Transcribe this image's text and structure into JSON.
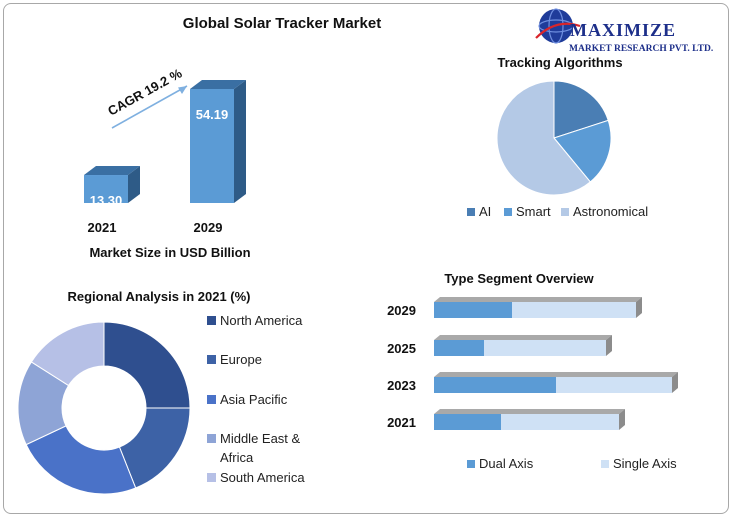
{
  "logo": {
    "name": "MAXIMIZE",
    "tagline": "MARKET RESEARCH PVT. LTD."
  },
  "chart_data": [
    {
      "id": "market",
      "type": "bar",
      "title": "Global Solar Tracker Market",
      "categories": [
        "2021",
        "2029"
      ],
      "values": [
        13.3,
        54.19
      ],
      "value_labels": [
        "13.30",
        "54.19"
      ],
      "xlabel": "Market Size in USD Billion",
      "annotation": "CAGR 19.2 %",
      "color": "#5b9bd5"
    },
    {
      "id": "algorithms",
      "type": "pie",
      "title": "Tracking Algorithms",
      "labels": [
        "AI",
        "Smart",
        "Astronomical"
      ],
      "values": [
        20,
        19,
        61
      ],
      "colors": [
        "#4a7eb4",
        "#5b9bd5",
        "#b4c9e6"
      ]
    },
    {
      "id": "regional",
      "type": "pie",
      "donut": true,
      "title": "Regional Analysis in 2021 (%)",
      "labels": [
        "North America",
        "Europe",
        "Asia Pacific",
        "Middle East & Africa",
        "South America"
      ],
      "legend_lines": [
        [
          "North America"
        ],
        [
          "Europe"
        ],
        [
          "Asia Pacific"
        ],
        [
          "Middle East &",
          "Africa"
        ],
        [
          "South America"
        ]
      ],
      "values": [
        25,
        19,
        24,
        16,
        16
      ],
      "colors": [
        "#2f4f8f",
        "#3d62a6",
        "#4a72c8",
        "#8ea4d6",
        "#b6c0e6"
      ]
    },
    {
      "id": "segment",
      "type": "bar",
      "orientation": "horizontal",
      "stacked": true,
      "title": "Type Segment Overview",
      "categories": [
        "2029",
        "2025",
        "2023",
        "2021"
      ],
      "series": [
        {
          "name": "Dual Axis",
          "values": [
            78,
            50,
            122,
            67
          ],
          "color": "#5b9bd5"
        },
        {
          "name": "Single Axis",
          "values": [
            124,
            122,
            116,
            118
          ],
          "color": "#cfe1f5"
        }
      ]
    }
  ]
}
